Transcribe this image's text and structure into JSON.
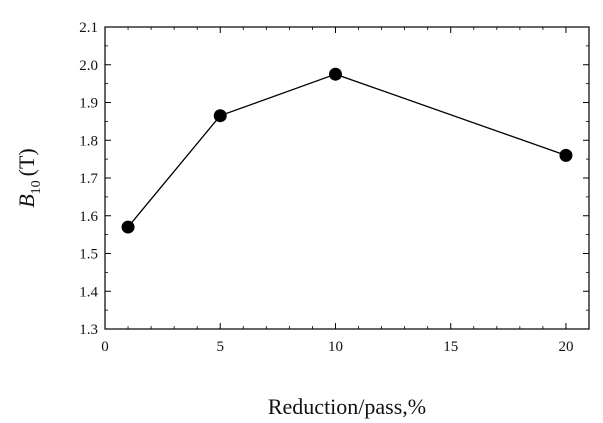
{
  "chart_data": {
    "type": "line",
    "xlabel": "Reduction/pass,%",
    "ylabel_main": "B",
    "ylabel_sub": "10",
    "ylabel_unit": "(T)",
    "xlim": [
      0,
      21
    ],
    "ylim": [
      1.3,
      2.1
    ],
    "xticks": [
      0,
      5,
      10,
      15,
      20
    ],
    "xtick_labels": [
      "0",
      "5",
      "10",
      "15",
      "20"
    ],
    "yticks": [
      1.3,
      1.4,
      1.5,
      1.6,
      1.7,
      1.8,
      1.9,
      2.0,
      2.1
    ],
    "ytick_labels": [
      "1.3",
      "1.4",
      "1.5",
      "1.6",
      "1.7",
      "1.8",
      "1.9",
      "2.0",
      "2.1"
    ],
    "grid": false,
    "series": [
      {
        "x": [
          1,
          5,
          10,
          20
        ],
        "y": [
          1.57,
          1.865,
          1.975,
          1.76
        ],
        "color": "#000000",
        "marker": "filled-circle"
      }
    ]
  }
}
